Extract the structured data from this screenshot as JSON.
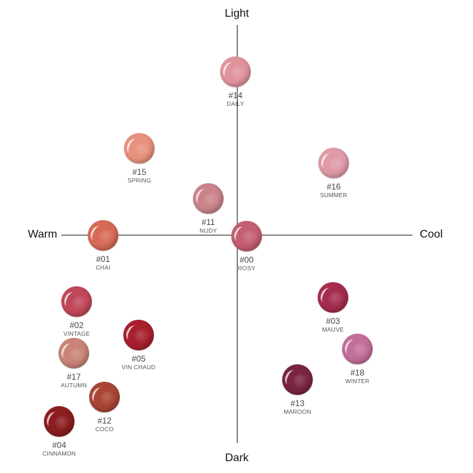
{
  "axes": {
    "top": "Light",
    "bottom": "Dark",
    "left": "Warm",
    "right": "Cool"
  },
  "swatches": [
    {
      "number": "#14",
      "name": "DAILY",
      "color": "#e0939d"
    },
    {
      "number": "#15",
      "name": "SPRING",
      "color": "#e8917f"
    },
    {
      "number": "#16",
      "name": "SUMMER",
      "color": "#df9aa8"
    },
    {
      "number": "#11",
      "name": "NUDY",
      "color": "#c9848a"
    },
    {
      "number": "#01",
      "name": "CHAI",
      "color": "#d66a57"
    },
    {
      "number": "#00",
      "name": "ROSY",
      "color": "#c35f70"
    },
    {
      "number": "#02",
      "name": "VINTAGE",
      "color": "#c0485a"
    },
    {
      "number": "#03",
      "name": "MAUVE",
      "color": "#a42d4e"
    },
    {
      "number": "#05",
      "name": "VIN CHAUD",
      "color": "#a8202f"
    },
    {
      "number": "#17",
      "name": "AUTUMN",
      "color": "#c88478"
    },
    {
      "number": "#18",
      "name": "WINTER",
      "color": "#c26f9a"
    },
    {
      "number": "#13",
      "name": "MAROON",
      "color": "#7a2540"
    },
    {
      "number": "#12",
      "name": "COCO",
      "color": "#a84535"
    },
    {
      "number": "#04",
      "name": "CINNAMON",
      "color": "#8b1d20"
    }
  ]
}
